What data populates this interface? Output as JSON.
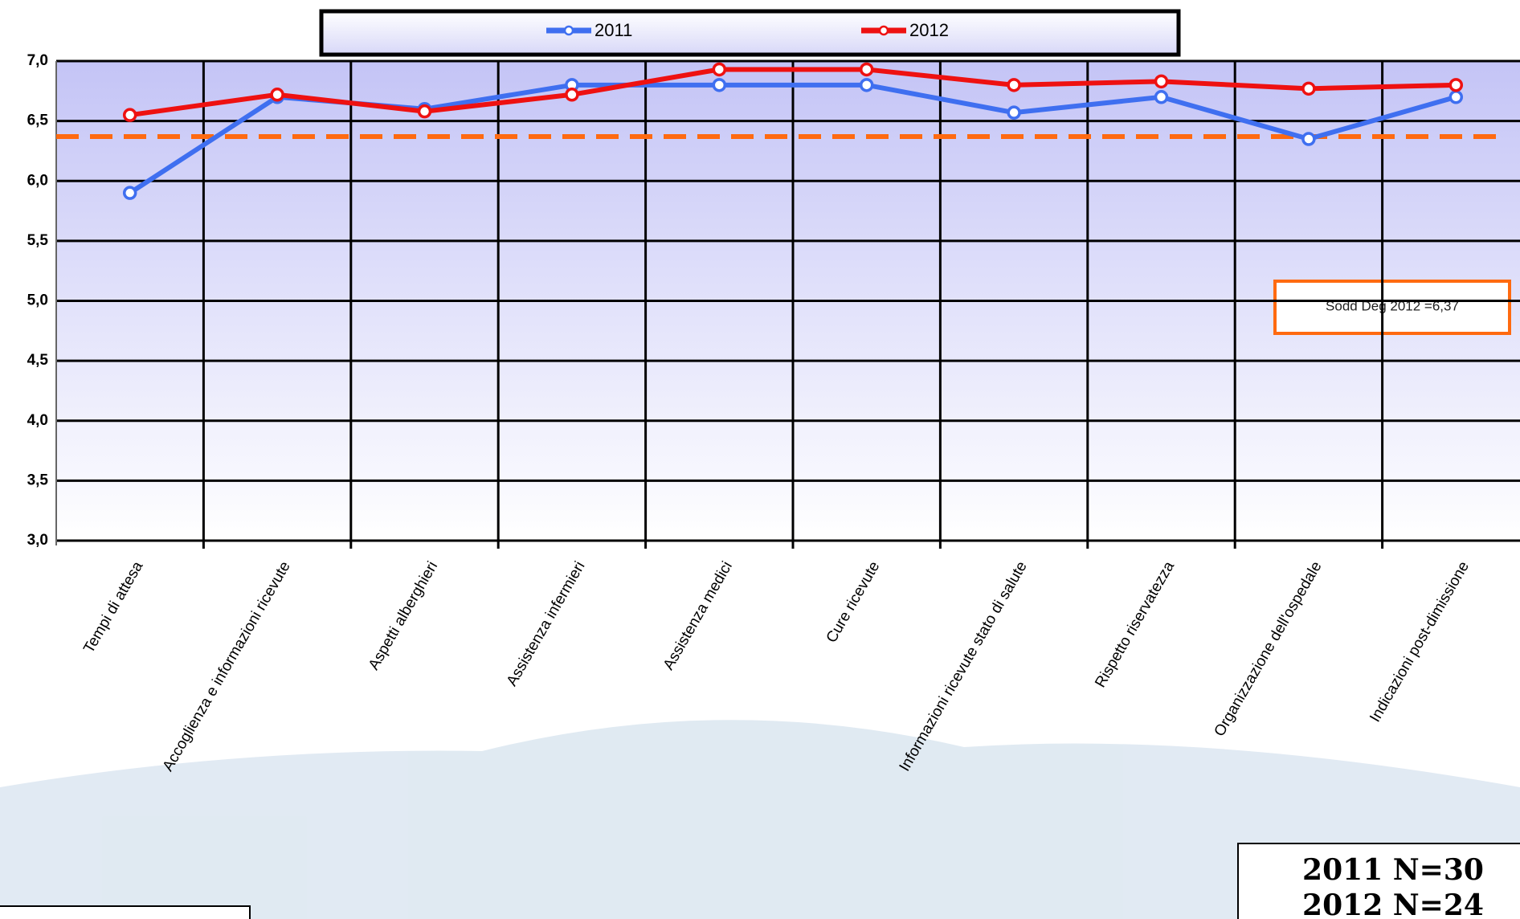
{
  "chart_data": {
    "type": "line",
    "categories": [
      "Tempi di attesa",
      "Accoglienza e informazioni ricevute",
      "Aspetti alberghieri",
      "Assistenza infermieri",
      "Assistenza medici",
      "Cure ricevute",
      "Informazioni ricevute stato di salute",
      "Rispetto riservatezza",
      "Organizzazione dell'ospedale",
      "Indicazioni post-dimissione"
    ],
    "series": [
      {
        "name": "2011",
        "color": "#3f6ff0",
        "values": [
          5.9,
          6.7,
          6.6,
          6.8,
          6.8,
          6.8,
          6.57,
          6.7,
          6.35,
          6.7
        ]
      },
      {
        "name": "2012",
        "color": "#ee1111",
        "values": [
          6.55,
          6.72,
          6.58,
          6.72,
          6.93,
          6.93,
          6.8,
          6.83,
          6.77,
          6.8
        ]
      }
    ],
    "ylim": [
      3,
      7
    ],
    "yticks": [
      {
        "value": 3,
        "label": "3,0"
      },
      {
        "value": 3.5,
        "label": "3,5"
      },
      {
        "value": 4,
        "label": "4,0"
      },
      {
        "value": 4.5,
        "label": "4,5"
      },
      {
        "value": 5,
        "label": "5,0"
      },
      {
        "value": 5.5,
        "label": "5,5"
      },
      {
        "value": 6,
        "label": "6,0"
      },
      {
        "value": 6.5,
        "label": "6,5"
      },
      {
        "value": 7,
        "label": "7,0"
      }
    ],
    "grid": true,
    "reference_line": {
      "value": 6.37,
      "color": "#ff6a10",
      "label": "Sodd Deg 2012 =6,37"
    },
    "notes": [
      "2011 N=30",
      "2012 N=24"
    ]
  }
}
